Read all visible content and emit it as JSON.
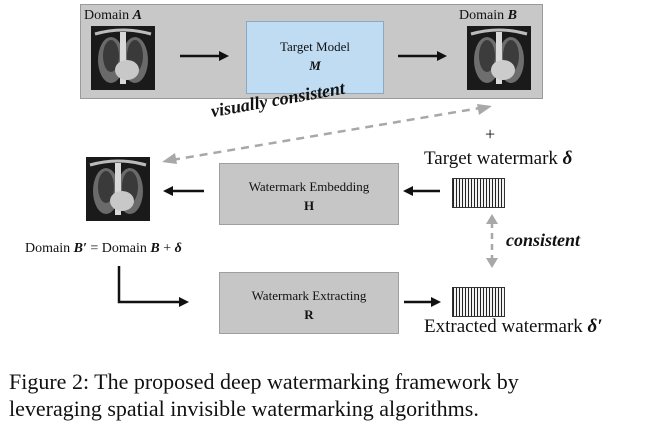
{
  "domain_a_label": "Domain ",
  "domain_a_sym": "A",
  "domain_b_label": "Domain ",
  "domain_b_sym": "B",
  "target_model": {
    "title": "Target Model",
    "symbol": "M"
  },
  "visually_consistent": "visually consistent",
  "plus": "+",
  "target_watermark": {
    "text": "Target watermark ",
    "symbol": "δ"
  },
  "embedding": {
    "title": "Watermark Embedding",
    "symbol": "H"
  },
  "consistent": "consistent",
  "domain_b_prime": {
    "p1": "Domain ",
    "s1": "B′",
    "p2": " = Domain ",
    "s2": "B",
    "p3": " + ",
    "s3": "δ"
  },
  "extracting": {
    "title": "Watermark Extracting",
    "symbol": "R"
  },
  "extracted_watermark": {
    "text": "Extracted watermark ",
    "symbol": "δ′"
  },
  "caption": {
    "line1": "Figure 2: The proposed deep watermarking framework by",
    "line2": "leveraging spatial invisible watermarking algorithms."
  },
  "colors": {
    "panel": "#c8c8c8",
    "model_box": "#bfdcf3",
    "gray_box": "#c6c6c6",
    "dashed_arrow": "#a8a8a8"
  }
}
